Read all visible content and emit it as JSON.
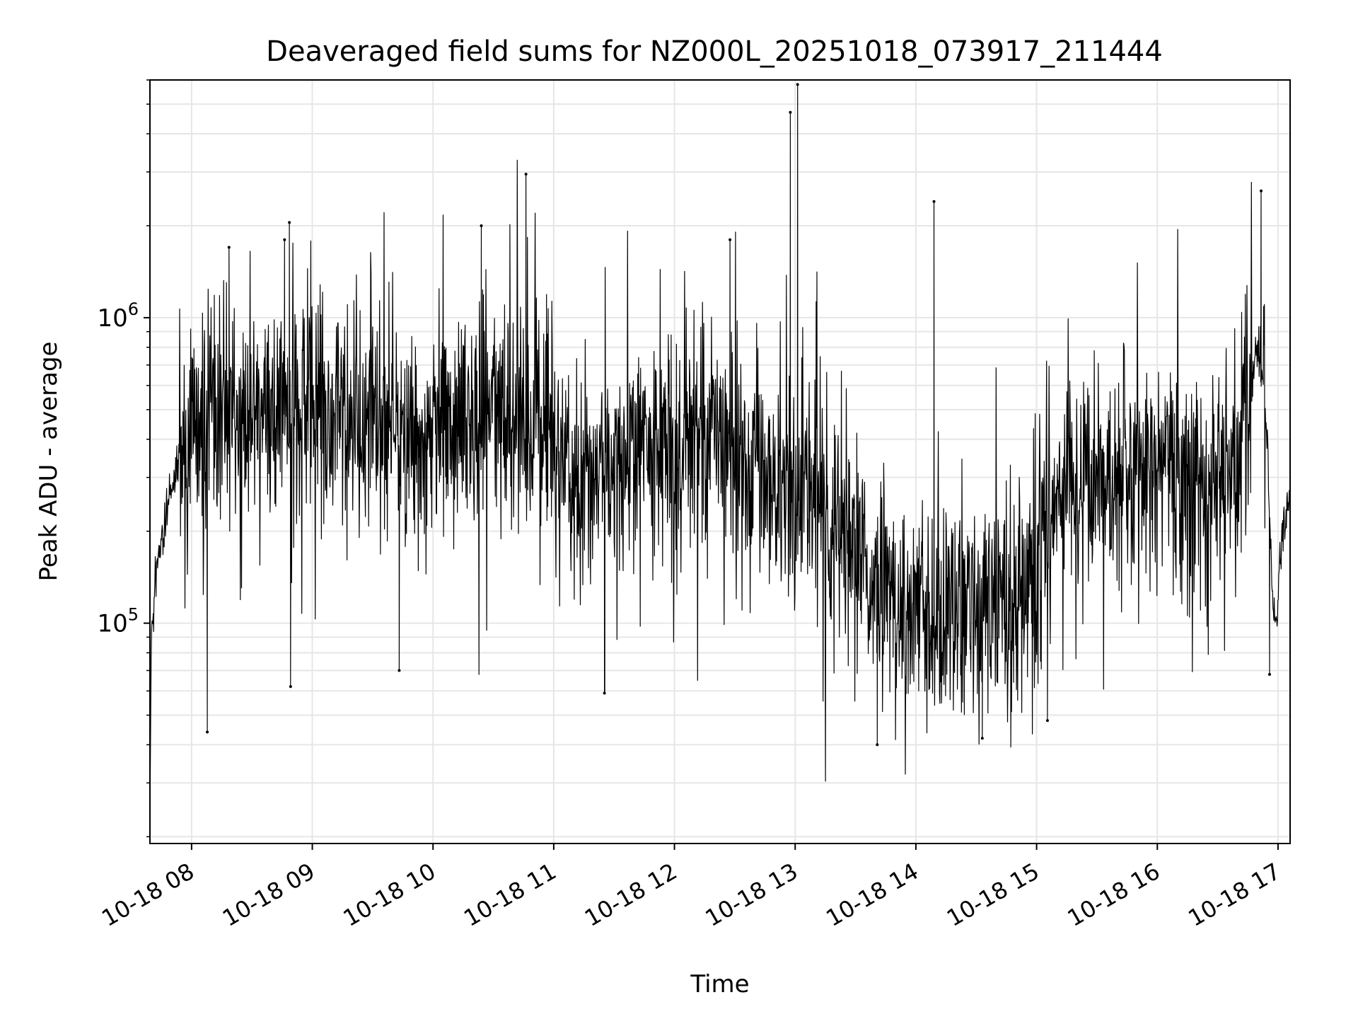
{
  "chart_data": {
    "type": "line",
    "title": "Deaveraged field sums for NZ000L_20251018_073917_211444",
    "xlabel": "Time",
    "ylabel": "Peak ADU - average",
    "yscale": "log",
    "ylim": [
      19000,
      6000000
    ],
    "xlim_hours": [
      7.655,
      17.1
    ],
    "grid": true,
    "line_color": "#000000",
    "grid_color": "#e6e6e6",
    "y_major_ticks": [
      {
        "value": 100000,
        "base": "10",
        "exp": "5"
      },
      {
        "value": 1000000,
        "base": "10",
        "exp": "6"
      }
    ],
    "x_ticks": [
      {
        "hour": 8,
        "label": "10-18 08"
      },
      {
        "hour": 9,
        "label": "10-18 09"
      },
      {
        "hour": 10,
        "label": "10-18 10"
      },
      {
        "hour": 11,
        "label": "10-18 11"
      },
      {
        "hour": 12,
        "label": "10-18 12"
      },
      {
        "hour": 13,
        "label": "10-18 13"
      },
      {
        "hour": 14,
        "label": "10-18 14"
      },
      {
        "hour": 15,
        "label": "10-18 15"
      },
      {
        "hour": 16,
        "label": "10-18 16"
      },
      {
        "hour": 17,
        "label": "10-18 17"
      }
    ],
    "series": [
      {
        "name": "Peak ADU - average",
        "x_hours": [
          7.655,
          7.66,
          7.67,
          7.68,
          7.7,
          7.75,
          7.8,
          7.85,
          7.9,
          7.95,
          8.0,
          8.1,
          8.2,
          8.3,
          8.5,
          8.7,
          9.0,
          9.3,
          9.6,
          9.9,
          10.2,
          10.5,
          10.7,
          10.9,
          11.1,
          11.3,
          11.5,
          11.8,
          12.1,
          12.4,
          12.7,
          13.0,
          13.3,
          13.6,
          13.8,
          14.0,
          14.2,
          14.4,
          14.6,
          14.8,
          15.0,
          15.2,
          15.5,
          15.8,
          16.1,
          16.4,
          16.65,
          16.75,
          16.82,
          16.87,
          16.9,
          16.93,
          16.96,
          16.99,
          17.02,
          17.05,
          17.08,
          17.1
        ],
        "trend": [
          21000,
          55000,
          90000,
          110000,
          140000,
          190000,
          240000,
          290000,
          340000,
          420000,
          480000,
          550000,
          600000,
          560000,
          450000,
          500000,
          520000,
          460000,
          440000,
          450000,
          470000,
          520000,
          480000,
          420000,
          330000,
          300000,
          330000,
          380000,
          400000,
          380000,
          330000,
          260000,
          240000,
          170000,
          120000,
          110000,
          105000,
          110000,
          120000,
          130000,
          150000,
          280000,
          300000,
          320000,
          310000,
          290000,
          330000,
          520000,
          750000,
          680000,
          540000,
          250000,
          110000,
          100000,
          170000,
          220000,
          235000,
          230000
        ],
        "spikes": [
          {
            "hour": 8.13,
            "value": 44000
          },
          {
            "hour": 8.31,
            "value": 1700000
          },
          {
            "hour": 8.77,
            "value": 1800000
          },
          {
            "hour": 8.81,
            "value": 2050000
          },
          {
            "hour": 8.82,
            "value": 62000
          },
          {
            "hour": 9.72,
            "value": 70000
          },
          {
            "hour": 10.4,
            "value": 2000000
          },
          {
            "hour": 10.77,
            "value": 2950000
          },
          {
            "hour": 11.42,
            "value": 59000
          },
          {
            "hour": 12.46,
            "value": 1800000
          },
          {
            "hour": 12.96,
            "value": 4700000
          },
          {
            "hour": 13.02,
            "value": 5800000
          },
          {
            "hour": 13.68,
            "value": 40000
          },
          {
            "hour": 14.15,
            "value": 2400000
          },
          {
            "hour": 14.55,
            "value": 42000
          },
          {
            "hour": 15.09,
            "value": 48000
          },
          {
            "hour": 16.86,
            "value": 2600000
          },
          {
            "hour": 16.93,
            "value": 68000
          }
        ]
      }
    ]
  }
}
